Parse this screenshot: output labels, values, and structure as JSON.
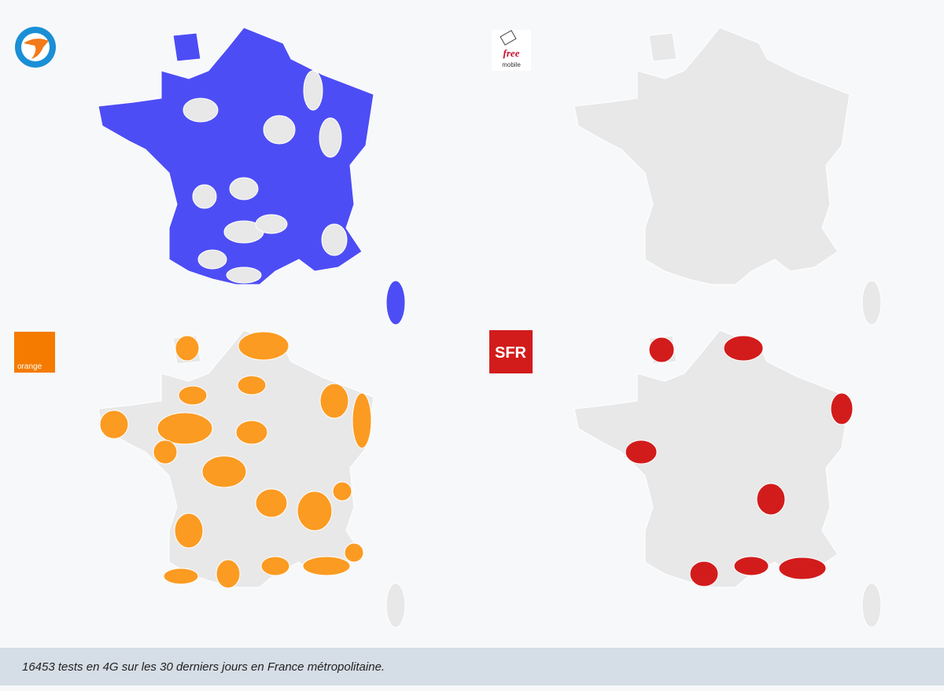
{
  "panels": [
    {
      "color": "#4d4df5",
      "base": "#4d4df5",
      "holes": "#e8e8e8"
    },
    {
      "logo_text": "free",
      "logo_sub": "mobile",
      "color": "#e8e8e8",
      "base": "#e8e8e8"
    },
    {
      "logo_text": "orange",
      "color": "#fb9b22",
      "base": "#e8e8e8"
    },
    {
      "logo_text": "SFR",
      "color": "#d21c1c",
      "base": "#e8e8e8"
    }
  ],
  "caption": "16453 tests en 4G sur les 30 derniers jours en France métropolitaine."
}
